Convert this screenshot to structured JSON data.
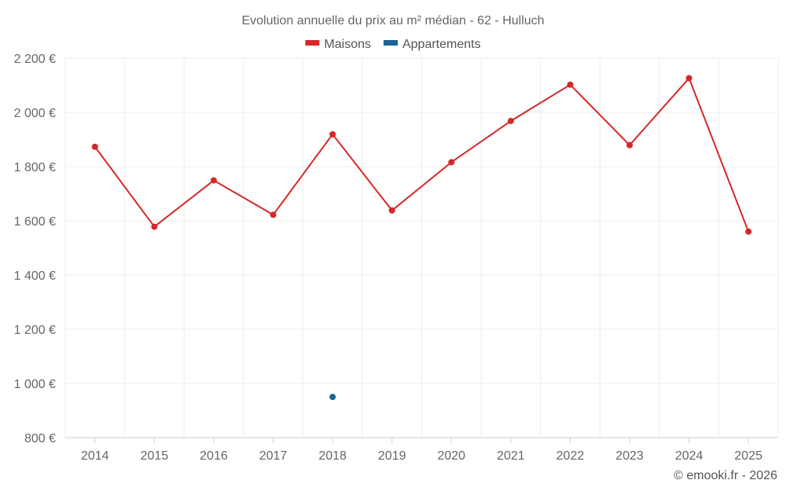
{
  "chart_data": {
    "type": "line",
    "title": "Evolution annuelle du prix au m² médian - 62 - Hulluch",
    "categories": [
      "2014",
      "2015",
      "2016",
      "2017",
      "2018",
      "2019",
      "2020",
      "2021",
      "2022",
      "2023",
      "2024",
      "2025"
    ],
    "series": [
      {
        "name": "Maisons",
        "color": "#d62728",
        "values": [
          1873,
          1578,
          1749,
          1622,
          1919,
          1638,
          1816,
          1968,
          2102,
          1879,
          2126,
          1560
        ]
      },
      {
        "name": "Appartements",
        "color": "#1a6496",
        "values": [
          null,
          null,
          null,
          null,
          950,
          null,
          null,
          null,
          null,
          null,
          null,
          null
        ]
      }
    ],
    "ylim": [
      800,
      2200
    ],
    "yticks": [
      800,
      1000,
      1200,
      1400,
      1600,
      1800,
      2000,
      2200
    ],
    "ytick_labels": [
      "800 €",
      "1 000 €",
      "1 200 €",
      "1 400 €",
      "1 600 €",
      "1 800 €",
      "2 000 €",
      "2 200 €"
    ],
    "xlabel": "",
    "ylabel": "",
    "grid": true,
    "legend_position": "top-center"
  },
  "credit": "© emooki.fr - 2026"
}
